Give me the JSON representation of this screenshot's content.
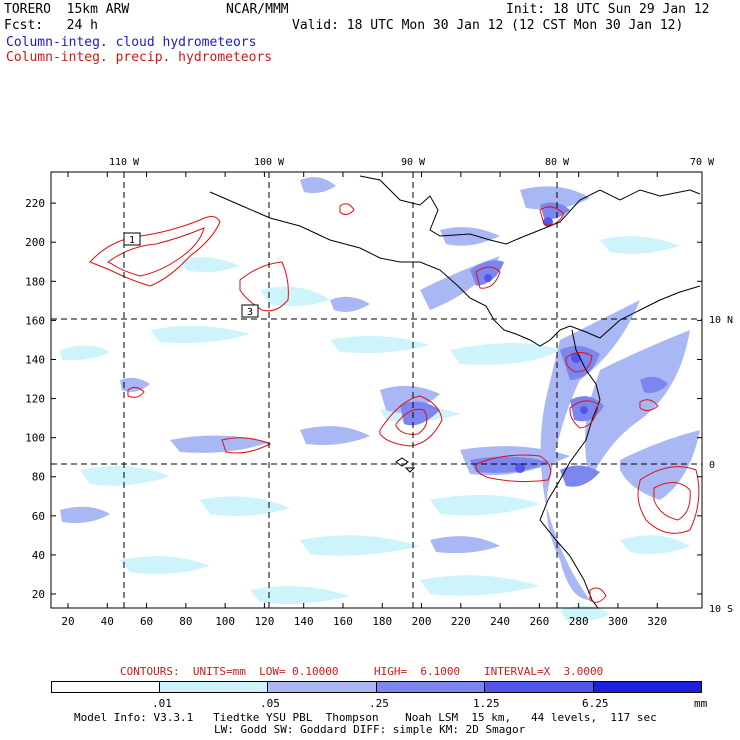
{
  "header": {
    "model": "TORERO  15km ARW",
    "org": "NCAR/MMM",
    "init": "Init: 18 UTC Sun 29 Jan 12",
    "fcst": "Fcst:   24 h",
    "valid": "Valid: 18 UTC Mon 30 Jan 12 (12 CST Mon 30 Jan 12)",
    "field_cloud": "Column-integ. cloud hydrometeors",
    "field_precip": "Column-integ. precip. hydrometeors"
  },
  "colors": {
    "cloud_text": "#1a1acc",
    "precip_text": "#cc1a1a",
    "contour": "#dd1111",
    "levels": [
      "#ffffff",
      "#cdf3fb",
      "#a9b8f5",
      "#7d86ee",
      "#5356ea",
      "#1f1fe0"
    ]
  },
  "axes": {
    "x_ticks": [
      "20",
      "40",
      "60",
      "80",
      "100",
      "120",
      "140",
      "160",
      "180",
      "200",
      "220",
      "240",
      "260",
      "280",
      "300",
      "320"
    ],
    "y_ticks": [
      "20",
      "40",
      "60",
      "80",
      "100",
      "120",
      "140",
      "160",
      "180",
      "200",
      "220"
    ],
    "lon_labels": [
      "110 W",
      "100 W",
      "90 W",
      "80 W",
      "70 W"
    ],
    "lat_labels": [
      "10 N",
      "0",
      "10 S"
    ]
  },
  "markers": [
    "1",
    "3"
  ],
  "contour_info": {
    "units": "CONTOURS:  UNITS=mm  LOW= 0.10000",
    "high": "HIGH=  6.1000",
    "interval": "INTERVAL=X  3.0000"
  },
  "colorbar": {
    "labels": [
      ".01",
      ".05",
      ".25",
      "1.25",
      "6.25"
    ],
    "unit": "mm"
  },
  "footer": {
    "line1": "Model Info: V3.3.1   Tiedtke YSU PBL  Thompson    Noah LSM  15 km,   44 levels,  117 sec",
    "line2": "LW: Godd SW: Goddard DIFF: simple KM: 2D Smagor"
  }
}
